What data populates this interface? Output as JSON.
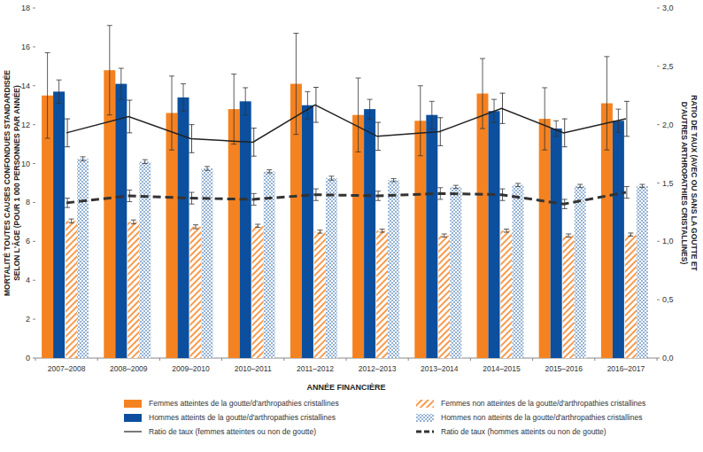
{
  "chart_data": {
    "type": "bar",
    "x_label": "ANNÉE FINANCIÈRE",
    "y_label": "MORTALITÉ TOUTES CAUSES CONFONDUES STANDARDISÉE SELON L'ÂGE (POUR 1 000 PERSONNES PAR ANNÉE)",
    "y2_label": "RATIO DE TAUX (AVEC OU SANS LA GOUTTE ET D'AUTRES ARTHROPATHIES CRISTALLINES)",
    "categories": [
      "2007–2008",
      "2008–2009",
      "2009–2010",
      "2010–2011",
      "2011–2012",
      "2012–2013",
      "2013–2014",
      "2014–2015",
      "2015–2016",
      "2016–2017"
    ],
    "ylim": [
      0,
      18
    ],
    "yticks": [
      0,
      2,
      4,
      6,
      8,
      10,
      12,
      14,
      16,
      18
    ],
    "y2lim": [
      0,
      3
    ],
    "y2ticks": [
      {
        "value": 0,
        "label": "0,0"
      },
      {
        "value": 0.5,
        "label": "0,5"
      },
      {
        "value": 1,
        "label": "1,0"
      },
      {
        "value": 1.5,
        "label": "1,5"
      },
      {
        "value": 2,
        "label": "2,0"
      },
      {
        "value": 2.5,
        "label": "2,5"
      },
      {
        "value": 3,
        "label": "3,0"
      }
    ],
    "grid": false,
    "legend": "bottom",
    "series": [
      {
        "name": "Femmes atteintes de la goutte/d'arthropathies cristallines",
        "type": "bar",
        "color": "#f58220",
        "values": [
          13.5,
          14.8,
          12.6,
          12.8,
          14.1,
          12.5,
          12.2,
          13.6,
          12.3,
          13.1
        ],
        "errors": [
          2.2,
          2.3,
          1.9,
          1.8,
          2.6,
          1.9,
          1.8,
          1.8,
          1.6,
          2.4
        ]
      },
      {
        "name": "Hommes atteints de la goutte/d'arthropathies cristallines",
        "type": "bar",
        "color": "#0b4f9e",
        "values": [
          13.7,
          14.1,
          13.4,
          13.2,
          13.0,
          12.8,
          12.5,
          12.7,
          11.8,
          12.2
        ],
        "errors": [
          0.6,
          0.8,
          0.7,
          0.7,
          0.7,
          0.5,
          0.7,
          0.6,
          0.4,
          0.6
        ]
      },
      {
        "name": "Femmes non atteintes de la goutte/d'arthropathies cristallines",
        "type": "bar",
        "color": "#f58220",
        "values": [
          7.05,
          7.0,
          6.75,
          6.8,
          6.5,
          6.55,
          6.3,
          6.55,
          6.3,
          6.35
        ],
        "errors": [
          0.1,
          0.1,
          0.1,
          0.08,
          0.08,
          0.08,
          0.08,
          0.08,
          0.08,
          0.08
        ]
      },
      {
        "name": "Hommes non atteints de la goutte/d'arthropathies cristallines",
        "type": "bar",
        "color": "#0b4f9e",
        "values": [
          10.25,
          10.1,
          9.75,
          9.6,
          9.25,
          9.15,
          8.8,
          8.9,
          8.85,
          8.85
        ],
        "errors": [
          0.1,
          0.1,
          0.1,
          0.08,
          0.1,
          0.08,
          0.08,
          0.08,
          0.08,
          0.08
        ]
      },
      {
        "name": "Ratio de taux (femmes atteintes ou non de goutte)",
        "type": "line",
        "axis": "y2",
        "color": "#222222",
        "line_style": "solid",
        "values": [
          1.93,
          2.07,
          1.88,
          1.85,
          2.17,
          1.9,
          1.94,
          2.14,
          1.93,
          2.05
        ],
        "errors": [
          0.12,
          0.14,
          0.12,
          0.12,
          0.15,
          0.12,
          0.12,
          0.13,
          0.12,
          0.15
        ]
      },
      {
        "name": "Ratio de taux (hommes atteints ou non de goutte)",
        "type": "line",
        "axis": "y2",
        "color": "#333333",
        "line_style": "dashed",
        "values": [
          1.33,
          1.39,
          1.37,
          1.36,
          1.4,
          1.39,
          1.41,
          1.4,
          1.32,
          1.42
        ],
        "errors": [
          0.04,
          0.05,
          0.05,
          0.05,
          0.05,
          0.04,
          0.05,
          0.05,
          0.04,
          0.05
        ]
      }
    ]
  }
}
